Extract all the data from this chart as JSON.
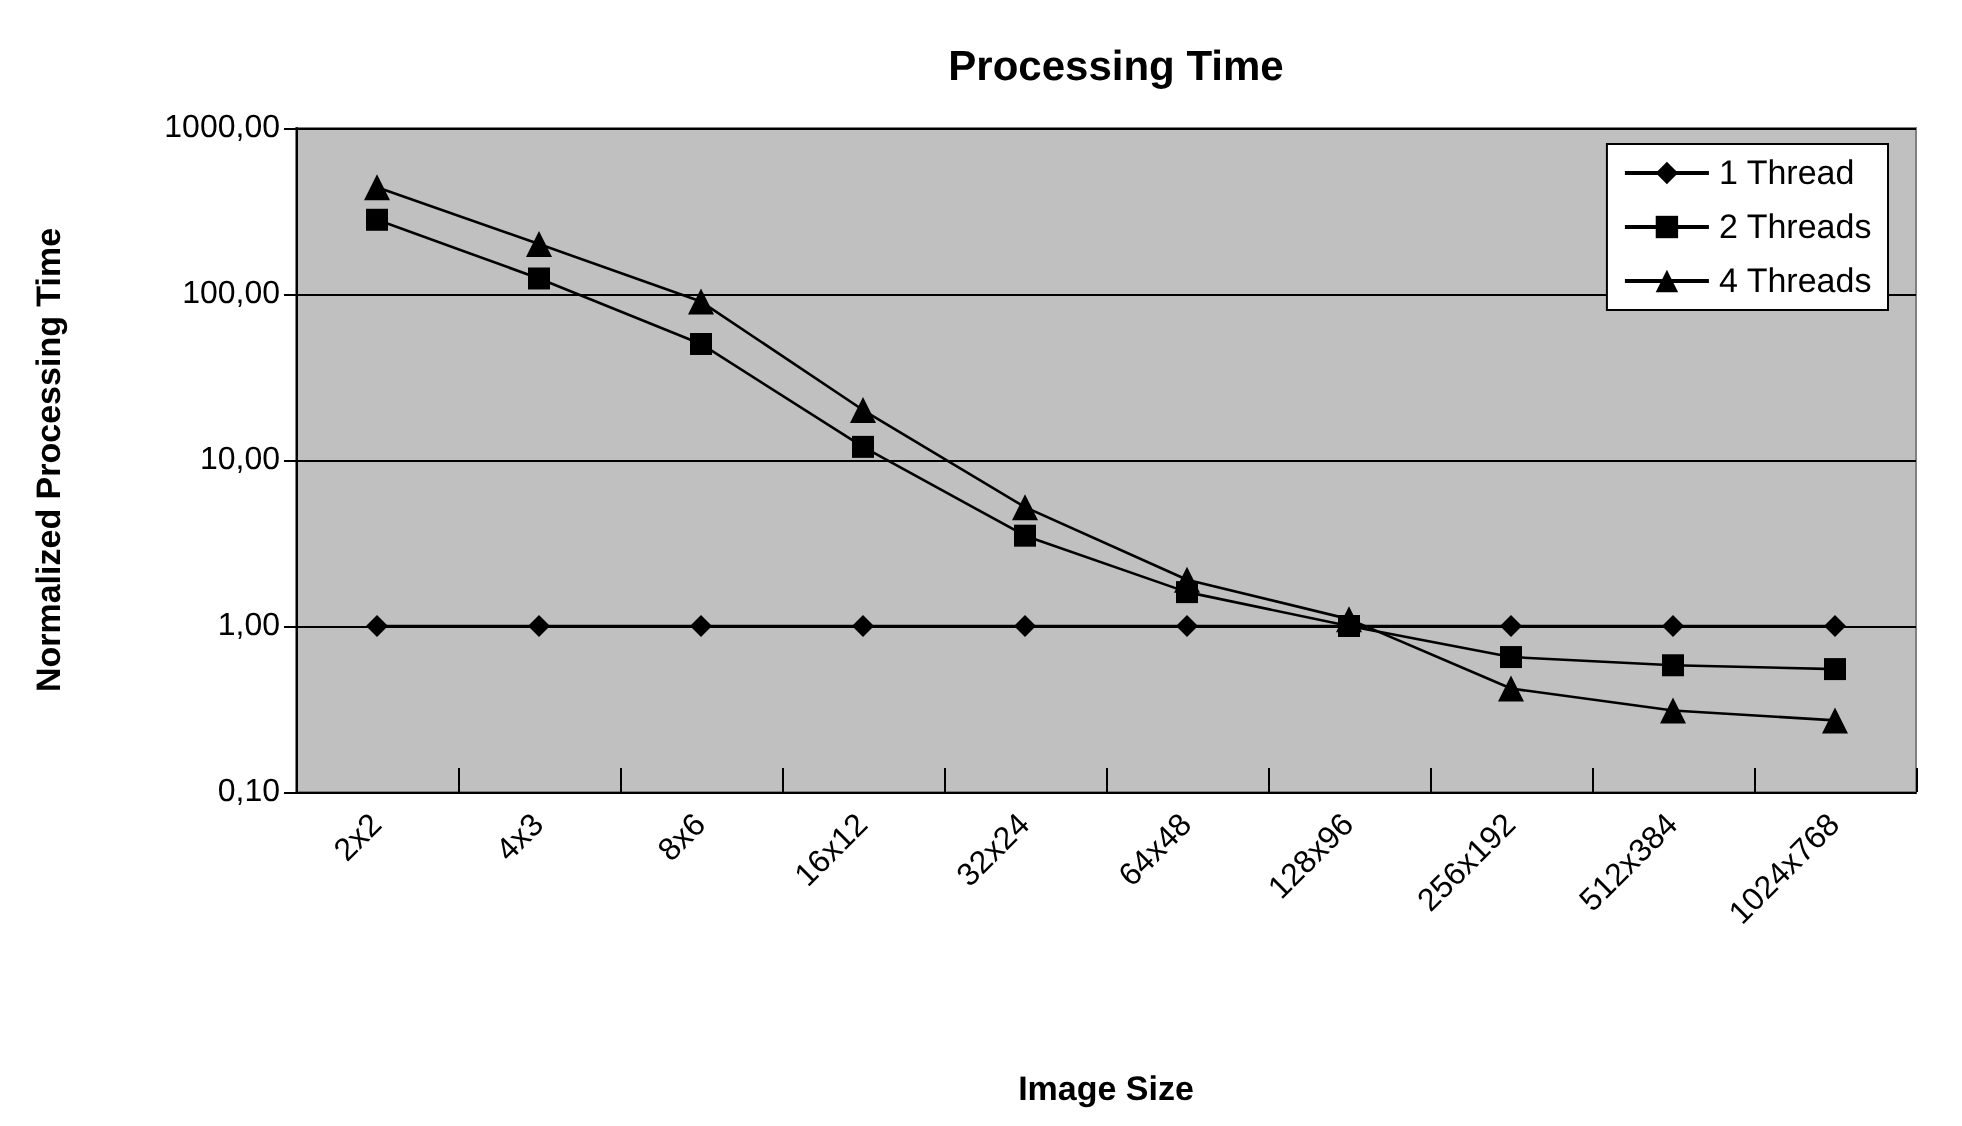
{
  "chart_data": {
    "type": "line",
    "title": "Processing Time",
    "xlabel": "Image Size",
    "ylabel": "Normalized Processing Time",
    "categories": [
      "2x2",
      "4x3",
      "8x6",
      "16x12",
      "32x24",
      "64x48",
      "128x96",
      "256x192",
      "512x384",
      "1024x768"
    ],
    "series": [
      {
        "name": "1 Thread",
        "color": "#000000",
        "marker": "diamond",
        "values": [
          1,
          1,
          1,
          1,
          1,
          1,
          1,
          1,
          1,
          1
        ]
      },
      {
        "name": "2 Threads",
        "color": "#000000",
        "marker": "square",
        "values": [
          280,
          124,
          50,
          12,
          3.5,
          1.6,
          1,
          0.65,
          0.58,
          0.55
        ]
      },
      {
        "name": "4 Threads",
        "color": "#000000",
        "marker": "triangle",
        "values": [
          440,
          200,
          90,
          20,
          5.2,
          1.9,
          1.1,
          0.42,
          0.31,
          0.27
        ]
      }
    ],
    "log": "y",
    "ylim": [
      0.1,
      1000
    ],
    "yticks": [
      {
        "value": 0.1,
        "label": "0,10"
      },
      {
        "value": 1,
        "label": "1,00"
      },
      {
        "value": 10,
        "label": "10,00"
      },
      {
        "value": 100,
        "label": "100,00"
      },
      {
        "value": 1000,
        "label": "1000,00"
      }
    ],
    "grid": "y",
    "legend": "top right",
    "line_style": "solid"
  }
}
